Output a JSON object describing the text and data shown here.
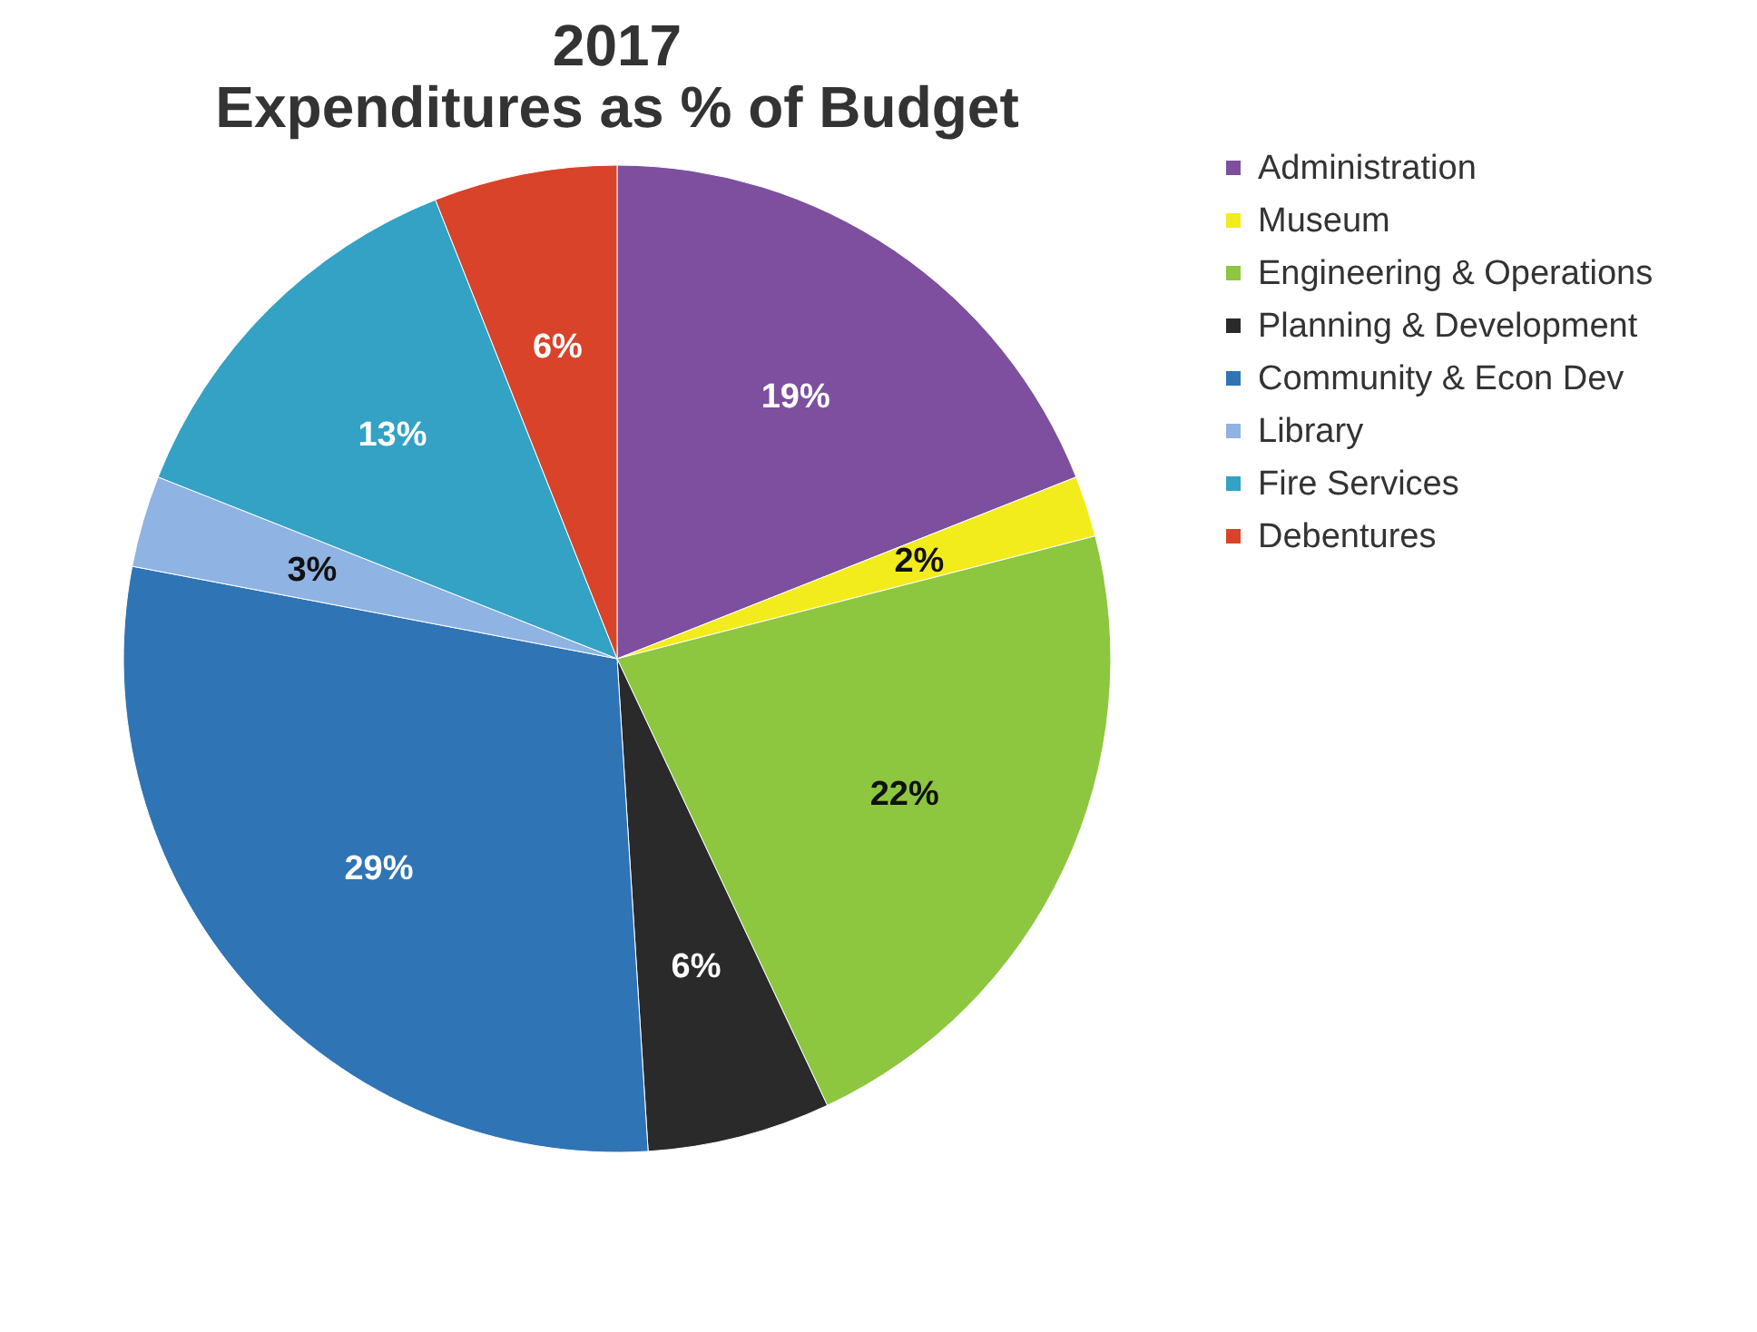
{
  "chart_data": {
    "type": "pie",
    "title": [
      "2017",
      "Expenditures as % of Budget"
    ],
    "categories": [
      "Administration",
      "Museum",
      "Engineering & Operations",
      "Planning & Development",
      "Community & Econ Dev",
      "Library",
      "Fire Services",
      "Debentures"
    ],
    "values": [
      19,
      2,
      22,
      6,
      29,
      3,
      13,
      6
    ],
    "colors": [
      "#7d4f9e",
      "#f2ec1c",
      "#8dc63f",
      "#2a2a2a",
      "#2f74b5",
      "#8fb3e2",
      "#33a2c4",
      "#d8432a"
    ],
    "value_labels": [
      "19%",
      "2%",
      "22%",
      "6%",
      "29%",
      "3%",
      "13%",
      "6%"
    ],
    "legend": "right"
  }
}
